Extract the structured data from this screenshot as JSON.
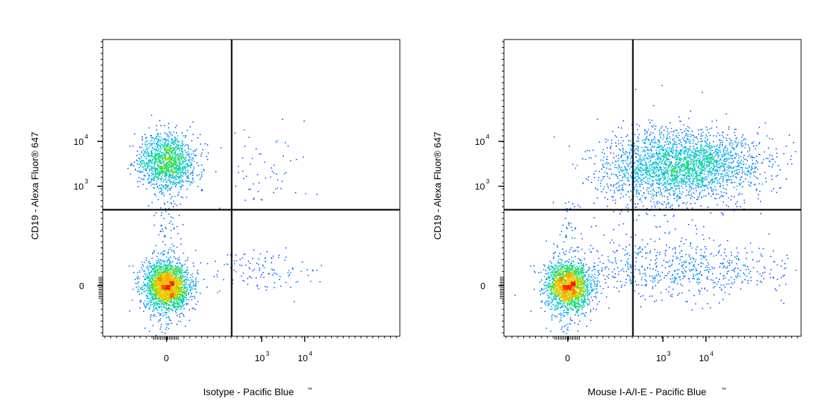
{
  "chart_data": [
    {
      "type": "scatter",
      "xlabel": "Isotype - Pacific Blue",
      "xlabel_mark": "™",
      "ylabel": "CD19 - Alexa Fluor® 647",
      "x_scale": "biexponential",
      "y_scale": "biexponential",
      "x_ticks": [
        {
          "base": "0",
          "exp": ""
        },
        {
          "base": "10",
          "exp": "3"
        },
        {
          "base": "10",
          "exp": "4"
        }
      ],
      "y_ticks": [
        {
          "base": "0",
          "exp": ""
        },
        {
          "base": "10",
          "exp": "3"
        },
        {
          "base": "10",
          "exp": "4"
        }
      ],
      "quadrant_gate": {
        "x": 200,
        "y": 300
      },
      "populations": [
        {
          "name": "",
          "center": {
            "x": 0,
            "y": 0
          },
          "count": 2600,
          "density": "high"
        },
        {
          "name": "",
          "center": {
            "x": 0,
            "y": 3500
          },
          "count": 1400,
          "density": "medium"
        },
        {
          "name": "",
          "center": {
            "x": 700,
            "y": 40
          },
          "count": 120,
          "density": "low"
        },
        {
          "name": "",
          "center": {
            "x": 900,
            "y": 2200
          },
          "count": 60,
          "density": "low"
        }
      ]
    },
    {
      "type": "scatter",
      "xlabel": "Mouse I-A/I-E - Pacific Blue",
      "xlabel_mark": "™",
      "ylabel": "CD19 - Alexa Fluor® 647",
      "x_scale": "biexponential",
      "y_scale": "biexponential",
      "x_ticks": [
        {
          "base": "0",
          "exp": ""
        },
        {
          "base": "10",
          "exp": "3"
        },
        {
          "base": "10",
          "exp": "4"
        }
      ],
      "y_ticks": [
        {
          "base": "0",
          "exp": ""
        },
        {
          "base": "10",
          "exp": "3"
        },
        {
          "base": "10",
          "exp": "4"
        }
      ],
      "quadrant_gate": {
        "x": 200,
        "y": 300
      },
      "populations": [
        {
          "name": "",
          "center": {
            "x": 0,
            "y": 0
          },
          "count": 2600,
          "density": "high"
        },
        {
          "name": "",
          "center": {
            "x": 3000,
            "y": 3000
          },
          "count": 2600,
          "density": "medium"
        },
        {
          "name": "",
          "center": {
            "x": 2000,
            "y": 40
          },
          "count": 650,
          "density": "low"
        },
        {
          "name": "",
          "center": {
            "x": 500,
            "y": 1200
          },
          "count": 200,
          "density": "low"
        }
      ]
    }
  ]
}
